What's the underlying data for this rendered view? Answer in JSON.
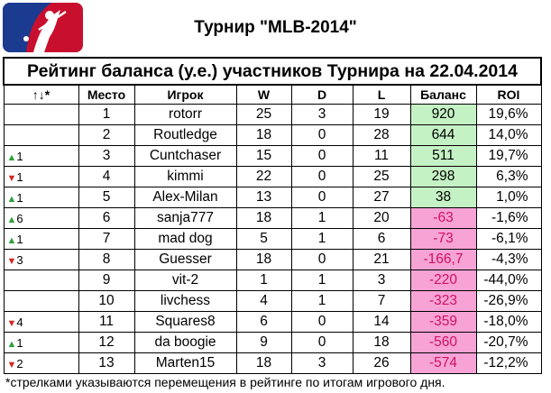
{
  "title": "Турнир \"MLB-2014\"",
  "caption": "Рейтинг баланса (у.е.) участников Турнира на 22.04.2014",
  "headers": {
    "move": "↑↓*",
    "place": "Место",
    "player": "Игрок",
    "w": "W",
    "d": "D",
    "l": "L",
    "balance": "Баланс",
    "roi": "ROI"
  },
  "rows": [
    {
      "arrow": "",
      "move": "",
      "place": "1",
      "player": "rotorr",
      "w": "25",
      "d": "3",
      "l": "19",
      "balance": "920",
      "roi": "19,6%"
    },
    {
      "arrow": "",
      "move": "",
      "place": "2",
      "player": "Routledge",
      "w": "18",
      "d": "0",
      "l": "28",
      "balance": "644",
      "roi": "14,0%"
    },
    {
      "arrow": "▲",
      "move": "1",
      "place": "3",
      "player": "Cuntchaser",
      "w": "15",
      "d": "0",
      "l": "11",
      "balance": "511",
      "roi": "19,7%"
    },
    {
      "arrow": "▼",
      "move": "1",
      "place": "4",
      "player": "kimmi",
      "w": "22",
      "d": "0",
      "l": "25",
      "balance": "298",
      "roi": "6,3%"
    },
    {
      "arrow": "▲",
      "move": "1",
      "place": "5",
      "player": "Alex-Milan",
      "w": "13",
      "d": "0",
      "l": "27",
      "balance": "38",
      "roi": "1,0%"
    },
    {
      "arrow": "▲",
      "move": "6",
      "place": "6",
      "player": "sanja777",
      "w": "18",
      "d": "1",
      "l": "20",
      "balance": "-63",
      "roi": "-1,6%"
    },
    {
      "arrow": "▲",
      "move": "1",
      "place": "7",
      "player": "mad dog",
      "w": "5",
      "d": "1",
      "l": "6",
      "balance": "-73",
      "roi": "-6,1%"
    },
    {
      "arrow": "▼",
      "move": "3",
      "place": "8",
      "player": "Guesser",
      "w": "18",
      "d": "0",
      "l": "21",
      "balance": "-166,7",
      "roi": "-4,3%"
    },
    {
      "arrow": "",
      "move": "",
      "place": "9",
      "player": "vit-2",
      "w": "1",
      "d": "1",
      "l": "3",
      "balance": "-220",
      "roi": "-44,0%"
    },
    {
      "arrow": "",
      "move": "",
      "place": "10",
      "player": "livchess",
      "w": "4",
      "d": "1",
      "l": "7",
      "balance": "-323",
      "roi": "-26,9%"
    },
    {
      "arrow": "▼",
      "move": "4",
      "place": "11",
      "player": "Squares8",
      "w": "6",
      "d": "0",
      "l": "14",
      "balance": "-359",
      "roi": "-18,0%"
    },
    {
      "arrow": "▲",
      "move": "1",
      "place": "12",
      "player": "da boogie",
      "w": "9",
      "d": "0",
      "l": "18",
      "balance": "-560",
      "roi": "-20,7%"
    },
    {
      "arrow": "▼",
      "move": "2",
      "place": "13",
      "player": "Marten15",
      "w": "18",
      "d": "3",
      "l": "26",
      "balance": "-574",
      "roi": "-12,2%"
    }
  ],
  "footnote": "*стрелками указываются перемещения в рейтинге по итогам игрового дня.",
  "colors": {
    "positive_balance_bg": "#c5f2c5",
    "negative_balance_bg": "#f7a3d6",
    "negative_balance_text": "#d01064",
    "arrow_up": "#2e9e3c",
    "arrow_down": "#d22828",
    "logo_blue": "#1a3b8f",
    "logo_red": "#c8102e"
  },
  "logo_icon": "mlb-logo-icon"
}
